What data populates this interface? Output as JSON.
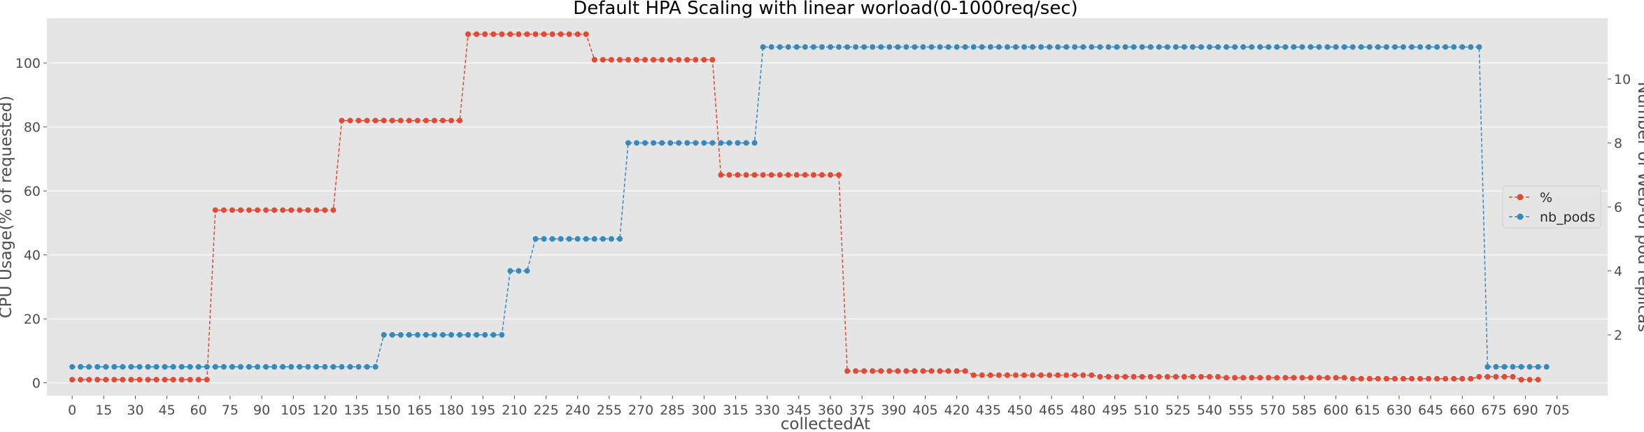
{
  "chart_data": {
    "type": "line",
    "title": "Default HPA Scaling with linear worload(0-1000req/sec)",
    "xlabel": "collectedAt",
    "ylabel_left": "CPU Usage(% of requested)",
    "ylabel_right": "Number of Web-UI pod replicas",
    "xlim": [
      -12,
      729
    ],
    "ylim_left": [
      -4,
      114
    ],
    "ylim_right": [
      0.1,
      11.9
    ],
    "x_ticks": [
      0,
      15,
      30,
      45,
      60,
      75,
      90,
      105,
      120,
      135,
      150,
      165,
      180,
      195,
      210,
      225,
      240,
      255,
      270,
      285,
      300,
      315,
      330,
      345,
      360,
      375,
      390,
      405,
      420,
      435,
      450,
      465,
      480,
      495,
      510,
      525,
      540,
      555,
      570,
      585,
      600,
      615,
      630,
      645,
      660,
      675,
      690,
      705
    ],
    "y_ticks_left": [
      0,
      20,
      40,
      60,
      80,
      100
    ],
    "y_ticks_right": [
      2,
      4,
      6,
      8,
      10
    ],
    "grid": true,
    "legend_position": "center-right",
    "x_step": 4,
    "series": [
      {
        "name": "%",
        "axis": "left",
        "color": "#E24A33",
        "segments": [
          {
            "count": 17,
            "value": 1
          },
          {
            "count": 15,
            "value": 54
          },
          {
            "count": 15,
            "value": 82
          },
          {
            "count": 15,
            "value": 109
          },
          {
            "count": 15,
            "value": 101
          },
          {
            "count": 15,
            "value": 65
          },
          {
            "count": 15,
            "value": 3.7
          },
          {
            "count": 15,
            "value": 2.4
          },
          {
            "count": 15,
            "value": 1.9
          },
          {
            "count": 15,
            "value": 1.6
          },
          {
            "count": 15,
            "value": 1.3
          },
          {
            "count": 5,
            "value": 1.9
          },
          {
            "count": 3,
            "value": 1
          }
        ]
      },
      {
        "name": "nb_pods",
        "axis": "right",
        "color": "#348ABD",
        "segments": [
          {
            "count": 37,
            "value": 1
          },
          {
            "count": 15,
            "value": 2
          },
          {
            "count": 3,
            "value": 4
          },
          {
            "count": 11,
            "value": 5
          },
          {
            "count": 16,
            "value": 8
          },
          {
            "count": 86,
            "value": 11
          },
          {
            "count": 8,
            "value": 1
          }
        ]
      }
    ]
  }
}
